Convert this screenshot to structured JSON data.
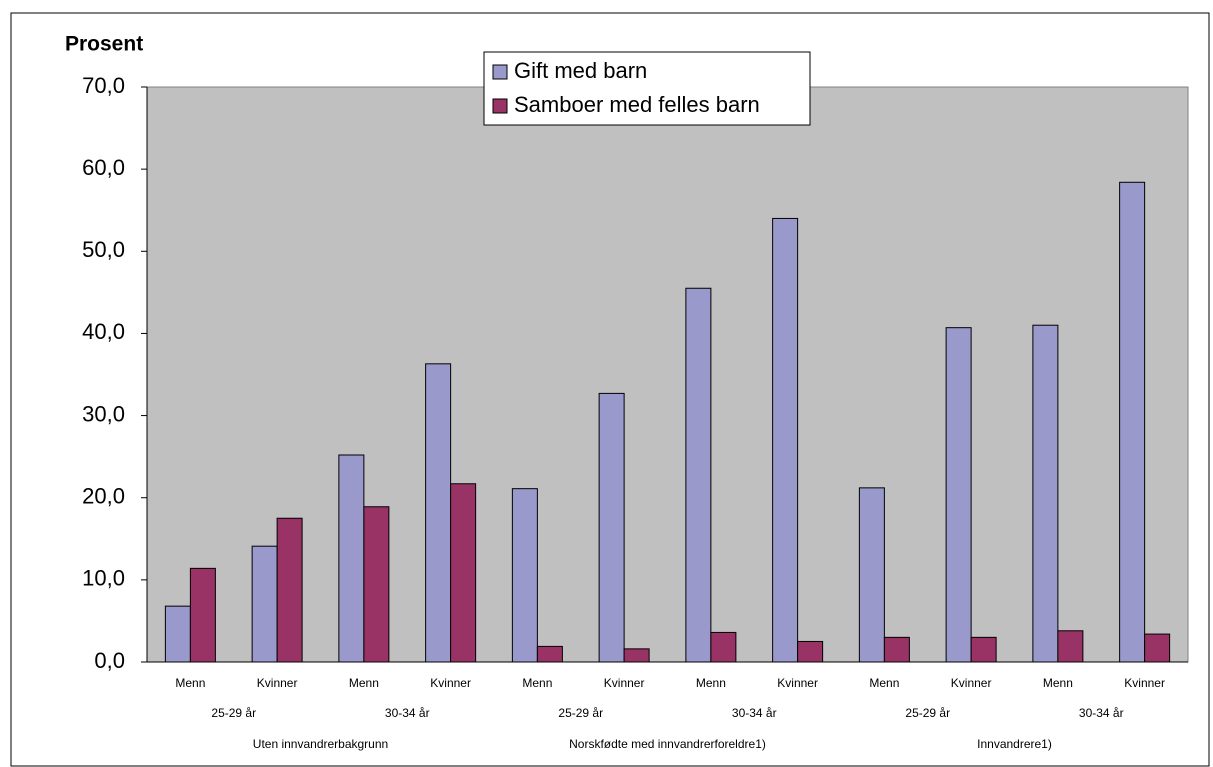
{
  "chart_data": {
    "type": "bar",
    "y_axis_title": "Prosent",
    "categories": [
      "Menn",
      "Kvinner",
      "Menn",
      "Kvinner",
      "Menn",
      "Kvinner",
      "Menn",
      "Kvinner",
      "Menn",
      "Kvinner",
      "Menn",
      "Kvinner"
    ],
    "category_levels": [
      [
        "25-29 år",
        "30-34 år",
        "25-29 år",
        "30-34 år",
        "25-29 år",
        "30-34 år"
      ],
      [
        "Uten innvandrerbakgrunn",
        "Norskfødte med innvandrerforeldre1)",
        "Innvandrere1)"
      ]
    ],
    "series": [
      {
        "name": "Gift med barn",
        "color": "#9999cc",
        "values": [
          6.8,
          14.1,
          25.2,
          36.3,
          21.1,
          32.7,
          45.5,
          54.0,
          21.2,
          40.7,
          41.0,
          58.4
        ]
      },
      {
        "name": "Samboer med felles barn",
        "color": "#993366",
        "values": [
          11.4,
          17.5,
          18.9,
          21.7,
          1.9,
          1.6,
          3.6,
          2.5,
          3.0,
          3.0,
          3.8,
          3.4
        ]
      }
    ],
    "ylim": [
      0,
      70
    ],
    "yticks": [
      {
        "value": 0,
        "label": "0,0"
      },
      {
        "value": 10,
        "label": "10,0"
      },
      {
        "value": 20,
        "label": "20,0"
      },
      {
        "value": 30,
        "label": "30,0"
      },
      {
        "value": 40,
        "label": "40,0"
      },
      {
        "value": 50,
        "label": "50,0"
      },
      {
        "value": 60,
        "label": "60,0"
      },
      {
        "value": 70,
        "label": "70,0"
      }
    ],
    "legend": "top"
  }
}
